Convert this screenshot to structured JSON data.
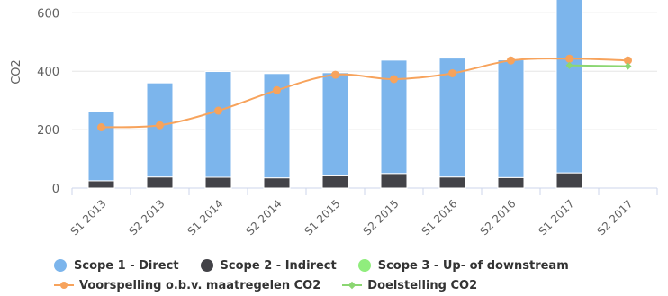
{
  "chart_data": {
    "type": "bar",
    "title": "",
    "ylabel": "CO2",
    "xlabel": "",
    "ylim": [
      0,
      650
    ],
    "yticks": [
      0,
      200,
      400,
      600
    ],
    "grid": true,
    "legend_position": "bottom",
    "categories": [
      "S1 2013",
      "S2 2013",
      "S1 2014",
      "S2 2014",
      "S1 2015",
      "S2 2015",
      "S1 2016",
      "S2 2016",
      "S1 2017",
      "S2 2017"
    ],
    "series": [
      {
        "name": "Scope 1 - Direct",
        "kind": "bar",
        "color": "#7cb5ec",
        "values": [
          238,
          322,
          362,
          357,
          353,
          388,
          407,
          403,
          608,
          null
        ]
      },
      {
        "name": "Scope 2 - Indirect",
        "kind": "bar",
        "color": "#434348",
        "values": [
          25,
          38,
          37,
          35,
          42,
          50,
          38,
          36,
          52,
          null
        ]
      },
      {
        "name": "Scope 3 - Up- of downstream",
        "kind": "bar",
        "color": "#90ed7d",
        "values": [
          0,
          0,
          0,
          0,
          0,
          0,
          0,
          0,
          0,
          null
        ]
      },
      {
        "name": "Voorspelling o.b.v. maatregelen CO2",
        "kind": "line",
        "color": "#f7a35c",
        "values": [
          208,
          215,
          265,
          335,
          388,
          373,
          393,
          437,
          443,
          437
        ]
      },
      {
        "name": "Doelstelling CO2",
        "kind": "line",
        "color": "#8bd672",
        "values": [
          null,
          null,
          null,
          null,
          null,
          null,
          null,
          null,
          420,
          417
        ]
      }
    ]
  },
  "legend": {
    "scope1": "Scope 1 - Direct",
    "scope2": "Scope 2 - Indirect",
    "scope3": "Scope 3 - Up- of downstream",
    "forecast": "Voorspelling o.b.v. maatregelen CO2",
    "target": "Doelstelling CO2"
  }
}
